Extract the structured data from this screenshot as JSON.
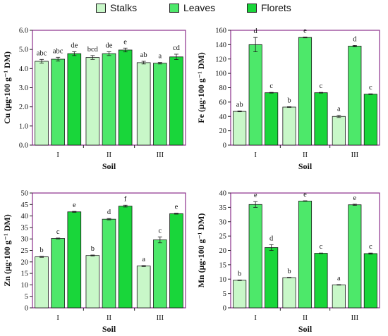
{
  "legend": {
    "items": [
      {
        "label": "Stalks",
        "color": "#c8f7c8"
      },
      {
        "label": "Leaves",
        "color": "#4de86a"
      },
      {
        "label": "Florets",
        "color": "#19d63a"
      }
    ]
  },
  "colors": {
    "frame": "#8b2f8b",
    "bar_border": "#1a1a1a",
    "error_bar": "#1a1a1a"
  },
  "chart_data": [
    {
      "type": "bar",
      "ylabel": "Cu (μg·100 g⁻¹ DM)",
      "xlabel": "Soil",
      "categories": [
        "I",
        "II",
        "III"
      ],
      "ylim": [
        0,
        6
      ],
      "yticks": [
        "0.0",
        "1.0",
        "2.0",
        "3.0",
        "4.0",
        "5.0",
        "6.0"
      ],
      "series": [
        {
          "name": "Stalks",
          "values": [
            4.38,
            4.58,
            4.31
          ],
          "errors": [
            0.1,
            0.1,
            0.07
          ],
          "letters": [
            "abc",
            "bcd",
            "ab"
          ]
        },
        {
          "name": "Leaves",
          "values": [
            4.49,
            4.78,
            4.28
          ],
          "errors": [
            0.1,
            0.1,
            0.04
          ],
          "letters": [
            "abc",
            "de",
            "a"
          ]
        },
        {
          "name": "Florets",
          "values": [
            4.78,
            4.97,
            4.61
          ],
          "errors": [
            0.1,
            0.1,
            0.14
          ],
          "letters": [
            "de",
            "e",
            "cd"
          ]
        }
      ]
    },
    {
      "type": "bar",
      "ylabel": "Fe (μg·100 g⁻¹ DM)",
      "xlabel": "Soil",
      "categories": [
        "I",
        "II",
        "III"
      ],
      "ylim": [
        0,
        160
      ],
      "yticks": [
        "0",
        "20",
        "40",
        "60",
        "80",
        "100",
        "120",
        "140",
        "160"
      ],
      "series": [
        {
          "name": "Stalks",
          "values": [
            47,
            53,
            40
          ],
          "errors": [
            0.5,
            0.5,
            1.5
          ],
          "letters": [
            "ab",
            "b",
            "a"
          ]
        },
        {
          "name": "Leaves",
          "values": [
            140,
            150,
            138
          ],
          "errors": [
            10,
            0.5,
            1
          ],
          "letters": [
            "d",
            "e",
            "d"
          ]
        },
        {
          "name": "Florets",
          "values": [
            73,
            73,
            71
          ],
          "errors": [
            0.5,
            0.5,
            0.5
          ],
          "letters": [
            "c",
            "c",
            "c"
          ]
        }
      ]
    },
    {
      "type": "bar",
      "ylabel": "Zn (μg·100 g⁻¹ DM)",
      "xlabel": "Soil",
      "categories": [
        "I",
        "II",
        "III"
      ],
      "ylim": [
        0,
        50
      ],
      "yticks": [
        "0",
        "5",
        "10",
        "15",
        "20",
        "25",
        "30",
        "35",
        "40",
        "45",
        "50"
      ],
      "series": [
        {
          "name": "Stalks",
          "values": [
            22.2,
            22.8,
            18.2
          ],
          "errors": [
            0.2,
            0.2,
            0.2
          ],
          "letters": [
            "b",
            "b",
            "a"
          ]
        },
        {
          "name": "Leaves",
          "values": [
            30.2,
            38.6,
            29.6
          ],
          "errors": [
            0.2,
            0.3,
            1.3
          ],
          "letters": [
            "c",
            "d",
            "c"
          ]
        },
        {
          "name": "Florets",
          "values": [
            41.8,
            44.3,
            41
          ],
          "errors": [
            0.2,
            0.4,
            0.2
          ],
          "letters": [
            "e",
            "f",
            "e"
          ]
        }
      ]
    },
    {
      "type": "bar",
      "ylabel": "Mn (μg·100 g⁻¹ DM)",
      "xlabel": "Soil",
      "categories": [
        "I",
        "II",
        "III"
      ],
      "ylim": [
        0,
        40
      ],
      "yticks": [
        "0",
        "5",
        "10",
        "15",
        "20",
        "25",
        "30",
        "35",
        "40"
      ],
      "series": [
        {
          "name": "Stalks",
          "values": [
            9.6,
            10.5,
            8
          ],
          "errors": [
            0.1,
            0.1,
            0.1
          ],
          "letters": [
            "b",
            "b",
            "a"
          ]
        },
        {
          "name": "Leaves",
          "values": [
            36,
            37.2,
            35.9
          ],
          "errors": [
            1,
            0.1,
            0.2
          ],
          "letters": [
            "e",
            "e",
            "e"
          ]
        },
        {
          "name": "Florets",
          "values": [
            21,
            19,
            18.9
          ],
          "errors": [
            1,
            0.1,
            0.2
          ],
          "letters": [
            "d",
            "c",
            "c"
          ]
        }
      ]
    }
  ]
}
